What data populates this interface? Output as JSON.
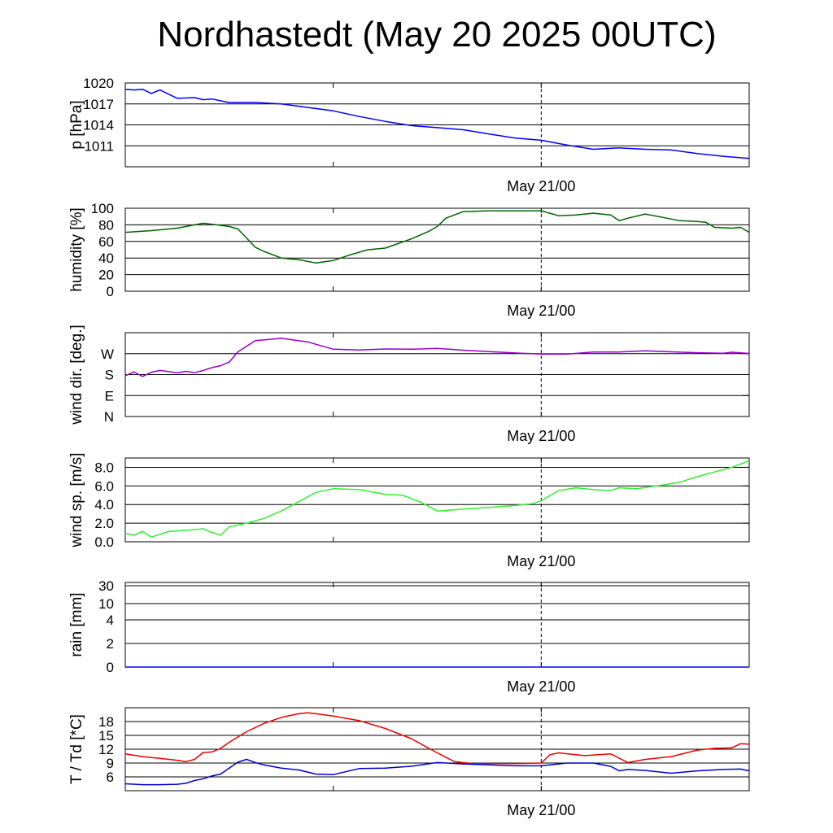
{
  "title": "Nordhastedt (May 20 2025 00UTC)",
  "chart_data": [
    {
      "type": "line",
      "ylabel": "p [hPa]",
      "ylim": [
        1008,
        1020
      ],
      "yticks": [
        1011,
        1014,
        1017,
        1020
      ],
      "xlabel_tick": "May 21/00",
      "x_range_hours": [
        0,
        72
      ],
      "marker_hour": 48,
      "series": [
        {
          "color": "#0000ff",
          "x": [
            0,
            1,
            2,
            3,
            4,
            6,
            8,
            9,
            10,
            12,
            15,
            18,
            21,
            24,
            27,
            30,
            33,
            36,
            39,
            42,
            45,
            48,
            51,
            54,
            57,
            60,
            63,
            66,
            69,
            72
          ],
          "y": [
            1019.1,
            1019.0,
            1019.1,
            1018.5,
            1019.0,
            1017.8,
            1017.9,
            1017.6,
            1017.7,
            1017.2,
            1017.2,
            1017.0,
            1016.5,
            1016.0,
            1015.2,
            1014.5,
            1013.9,
            1013.6,
            1013.3,
            1012.7,
            1012.1,
            1011.8,
            1011.1,
            1010.5,
            1010.7,
            1010.5,
            1010.4,
            1009.9,
            1009.5,
            1009.2
          ]
        }
      ]
    },
    {
      "type": "line",
      "ylabel": "humidity [%]",
      "ylim": [
        0,
        100
      ],
      "yticks": [
        0,
        20,
        40,
        60,
        80,
        100
      ],
      "xlabel_tick": "May 21/00",
      "x_range_hours": [
        0,
        72
      ],
      "marker_hour": 48,
      "series": [
        {
          "color": "#006400",
          "x": [
            0,
            3,
            6,
            8,
            9,
            12,
            13,
            15,
            16,
            18,
            20,
            22,
            24,
            26,
            28,
            30,
            33,
            35,
            36,
            37,
            39,
            42,
            45,
            48,
            50,
            52,
            54,
            56,
            57,
            58,
            60,
            62,
            64,
            66,
            67,
            68,
            70,
            71,
            72
          ],
          "y": [
            71,
            73,
            76,
            80,
            82,
            78,
            75,
            53,
            48,
            40,
            38,
            34,
            37,
            44,
            50,
            52,
            63,
            72,
            78,
            88,
            96,
            97,
            97,
            97,
            91,
            92,
            94,
            92,
            85,
            88,
            93,
            89,
            85,
            84,
            83,
            77,
            76,
            77,
            71
          ]
        }
      ]
    },
    {
      "type": "line",
      "ylabel": "wind dir. [deg.]",
      "ylim": [
        0,
        360
      ],
      "ytick_labels": [
        "N",
        "E",
        "S",
        "W"
      ],
      "ytick_values": [
        0,
        90,
        180,
        270
      ],
      "xlabel_tick": "May 21/00",
      "x_range_hours": [
        0,
        72
      ],
      "marker_hour": 48,
      "series": [
        {
          "color": "#9900cc",
          "x": [
            0,
            1,
            2,
            3,
            4,
            6,
            7,
            8,
            9,
            10,
            11,
            12,
            13,
            15,
            18,
            21,
            24,
            27,
            30,
            33,
            36,
            39,
            42,
            45,
            48,
            51,
            54,
            57,
            60,
            63,
            66,
            69,
            70,
            72
          ],
          "y": [
            175,
            192,
            172,
            190,
            198,
            188,
            194,
            188,
            198,
            210,
            218,
            234,
            278,
            326,
            336,
            321,
            289,
            286,
            290,
            289,
            293,
            285,
            279,
            273,
            268,
            268,
            277,
            277,
            282,
            278,
            274,
            272,
            276,
            271
          ]
        }
      ]
    },
    {
      "type": "line",
      "ylabel": "wind sp. [m/s]",
      "ylim": [
        0,
        9
      ],
      "yticks": [
        0,
        2,
        4,
        6,
        8
      ],
      "ytick_labels": [
        "0.0",
        "2.0",
        "4.0",
        "6.0",
        "8.0"
      ],
      "xlabel_tick": "May 21/00",
      "x_range_hours": [
        0,
        72
      ],
      "marker_hour": 48,
      "series": [
        {
          "color": "#33ee33",
          "x": [
            0,
            1,
            2,
            3,
            5,
            8,
            9,
            10,
            11,
            12,
            14,
            16,
            18,
            20,
            22,
            24,
            27,
            30,
            32,
            34,
            36,
            39,
            42,
            45,
            47,
            48,
            50,
            52,
            54,
            56,
            57,
            59,
            62,
            64,
            66,
            68,
            70,
            72
          ],
          "y": [
            0.9,
            0.7,
            1.1,
            0.5,
            1.1,
            1.3,
            1.4,
            1.0,
            0.7,
            1.6,
            2.0,
            2.5,
            3.3,
            4.3,
            5.3,
            5.7,
            5.6,
            5.1,
            5.0,
            4.3,
            3.3,
            3.5,
            3.7,
            3.9,
            4.1,
            4.4,
            5.5,
            5.8,
            5.6,
            5.5,
            5.8,
            5.7,
            6.1,
            6.4,
            7.0,
            7.5,
            8.0,
            8.7
          ]
        }
      ]
    },
    {
      "type": "line",
      "ylabel": "rain [mm]",
      "ylim": [
        0,
        30
      ],
      "ytick_labels": [
        "0",
        "2",
        "4",
        "10",
        "30"
      ],
      "xlabel_tick": "May 21/00",
      "x_range_hours": [
        0,
        72
      ],
      "marker_hour": 48,
      "series": [
        {
          "color": "#0000ff",
          "x": [
            0,
            72
          ],
          "y": [
            0,
            0
          ]
        }
      ]
    },
    {
      "type": "line",
      "ylabel": "T / Td [*C]",
      "ylim": [
        3,
        21
      ],
      "yticks": [
        6,
        9,
        12,
        15,
        18
      ],
      "xlabel_tick": "May 21/00",
      "x_range_hours": [
        0,
        72
      ],
      "marker_hour": 48,
      "series": [
        {
          "color": "#ee0000",
          "x": [
            0,
            2,
            4,
            6,
            7,
            8,
            9,
            10,
            11,
            12,
            14,
            16,
            18,
            20,
            21,
            22,
            24,
            27,
            30,
            33,
            36,
            38,
            40,
            42,
            45,
            48,
            49,
            50,
            53,
            56,
            58,
            60,
            63,
            66,
            68,
            70,
            71,
            72
          ],
          "y": [
            11.0,
            10.4,
            10.0,
            9.6,
            9.3,
            9.8,
            11.3,
            11.4,
            12.2,
            13.5,
            15.8,
            17.6,
            18.9,
            19.7,
            19.9,
            19.7,
            19.2,
            18.2,
            16.5,
            14.3,
            11.2,
            9.3,
            8.9,
            8.9,
            8.9,
            9.0,
            10.8,
            11.2,
            10.6,
            11.0,
            9.1,
            9.8,
            10.4,
            11.8,
            12.2,
            12.3,
            13.2,
            13.1
          ]
        },
        {
          "color": "#0000cc",
          "x": [
            0,
            2,
            4,
            6,
            7,
            8,
            9,
            10,
            11,
            12,
            13,
            14,
            15,
            16,
            18,
            20,
            22,
            24,
            27,
            30,
            33,
            36,
            39,
            42,
            45,
            48,
            51,
            54,
            56,
            57,
            58,
            60,
            63,
            66,
            69,
            71,
            72
          ],
          "y": [
            4.5,
            4.3,
            4.3,
            4.4,
            4.6,
            5.2,
            5.6,
            6.2,
            6.6,
            7.9,
            9.2,
            9.8,
            9.1,
            8.6,
            7.9,
            7.5,
            6.6,
            6.5,
            7.8,
            7.9,
            8.3,
            9.1,
            8.8,
            8.6,
            8.4,
            8.4,
            9.0,
            9.0,
            8.3,
            7.3,
            7.6,
            7.4,
            6.8,
            7.3,
            7.6,
            7.7,
            7.3
          ]
        }
      ]
    }
  ]
}
